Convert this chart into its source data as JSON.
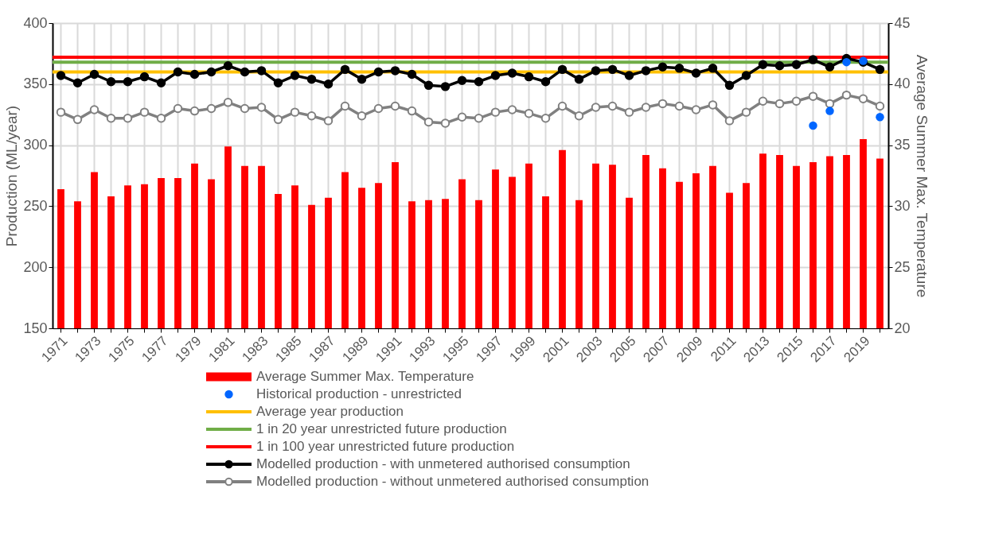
{
  "chart_data": {
    "type": "bar",
    "ylabel": "Production (ML/year)",
    "y2label": "Average Summer Max. Temperature",
    "categories": [
      "1971",
      null,
      "1973",
      null,
      "1975",
      null,
      "1977",
      null,
      "1979",
      null,
      "1981",
      null,
      "1983",
      null,
      "1985",
      null,
      "1987",
      null,
      "1989",
      null,
      "1991",
      null,
      "1993",
      null,
      "1995",
      null,
      "1997",
      null,
      "1999",
      null,
      "2001",
      null,
      "2003",
      null,
      "2005",
      null,
      "2007",
      null,
      "2009",
      null,
      "2011",
      null,
      "2013",
      null,
      "2015",
      null,
      "2017",
      null,
      "2019",
      null
    ],
    "ylim": [
      150,
      400
    ],
    "yticks": [
      150,
      200,
      250,
      300,
      350,
      400
    ],
    "y2lim": [
      20,
      45
    ],
    "y2ticks": [
      20,
      25,
      30,
      35,
      40,
      45
    ],
    "grid": true,
    "legend": "bottom",
    "series": [
      {
        "name": "Average Summer Max. Temperature",
        "axis": "y2",
        "color": "#ff0000",
        "values": [
          31.4,
          30.4,
          32.8,
          30.8,
          31.7,
          31.8,
          32.3,
          32.3,
          33.5,
          32.2,
          34.9,
          33.3,
          33.3,
          31.0,
          31.7,
          30.1,
          30.7,
          32.8,
          31.5,
          31.9,
          33.6,
          30.4,
          30.5,
          30.6,
          32.2,
          30.5,
          33.0,
          32.4,
          33.5,
          30.8,
          34.6,
          30.5,
          33.5,
          33.4,
          30.7,
          34.2,
          33.1,
          32.0,
          32.7,
          33.3,
          31.1,
          31.9,
          34.3,
          34.2,
          33.3,
          33.6,
          34.1,
          34.2,
          35.5,
          33.9
        ]
      },
      {
        "name": "Historical production - unrestricted",
        "type": "scatter",
        "marker": "circle",
        "color": "#0066ff",
        "values": [
          null,
          null,
          null,
          null,
          null,
          null,
          null,
          null,
          null,
          null,
          null,
          null,
          null,
          null,
          null,
          null,
          null,
          null,
          null,
          null,
          null,
          null,
          null,
          null,
          null,
          null,
          null,
          null,
          null,
          null,
          null,
          null,
          null,
          null,
          null,
          null,
          null,
          null,
          null,
          null,
          null,
          null,
          null,
          null,
          null,
          316,
          328,
          368,
          369,
          323
        ]
      },
      {
        "name": "Modelled production - with unmetered authorised consumption",
        "type": "line",
        "marker": "circle",
        "color": "#000000",
        "values": [
          357,
          351,
          358,
          352,
          352,
          356,
          351,
          360,
          358,
          360,
          365,
          360,
          361,
          351,
          357,
          354,
          350,
          362,
          354,
          360,
          361,
          358,
          349,
          348,
          353,
          352,
          357,
          359,
          356,
          352,
          362,
          354,
          361,
          362,
          357,
          361,
          364,
          363,
          359,
          363,
          349,
          357,
          366,
          365,
          366,
          370,
          364,
          371,
          368,
          362
        ]
      },
      {
        "name": "Modelled production - without unmetered authorised consumption",
        "type": "line",
        "marker": "circle",
        "color": "#808080",
        "values": [
          327,
          321,
          329,
          322,
          322,
          327,
          322,
          330,
          328,
          330,
          335,
          330,
          331,
          321,
          327,
          324,
          320,
          332,
          324,
          330,
          332,
          328,
          319,
          318,
          323,
          322,
          327,
          329,
          326,
          322,
          332,
          324,
          331,
          332,
          327,
          331,
          334,
          332,
          329,
          333,
          320,
          327,
          336,
          334,
          336,
          340,
          334,
          341,
          338,
          332
        ]
      }
    ],
    "ref_lines": [
      {
        "axis": "y",
        "value": 360,
        "label": "Average year production",
        "color": "#ffc000"
      },
      {
        "axis": "y",
        "value": 368,
        "label": "1 in 20 year unrestricted future production",
        "color": "#70ad47"
      },
      {
        "axis": "y",
        "value": 372,
        "label": "1 in 100 year unrestricted future production",
        "color": "#ff0000"
      }
    ]
  }
}
